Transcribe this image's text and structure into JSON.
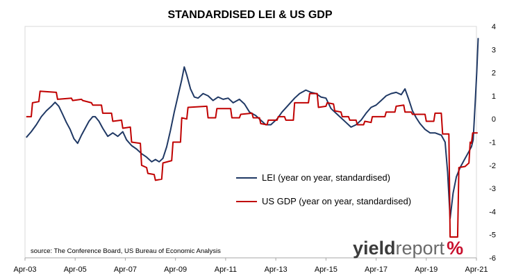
{
  "chart_data": {
    "type": "line",
    "title": "STANDARDISED LEI & US GDP",
    "source": "source: The Conference Board, US Bureau of Economic Analysis",
    "x_tick_labels": [
      "Apr-03",
      "Apr-05",
      "Apr-07",
      "Apr-09",
      "Apr-11",
      "Apr-13",
      "Apr-15",
      "Apr-17",
      "Apr-19",
      "Apr-21"
    ],
    "y_tick_labels": [
      "-6",
      "-5",
      "-4",
      "-3",
      "-2",
      "-1",
      "0",
      "1",
      "2",
      "3",
      "4"
    ],
    "xlim": [
      "Apr-03",
      "Apr-21"
    ],
    "ylim": [
      -6,
      4
    ],
    "grid": false,
    "legend_position": "center-right",
    "logo": {
      "part1": "yield",
      "part2": "report",
      "part3": "%"
    },
    "series": [
      {
        "name": "LEI (year on year, standardised)",
        "color": "#1f3864",
        "points": [
          [
            2003.3,
            -0.8
          ],
          [
            2003.5,
            -0.55
          ],
          [
            2003.7,
            -0.25
          ],
          [
            2003.9,
            0.1
          ],
          [
            2004.1,
            0.35
          ],
          [
            2004.3,
            0.55
          ],
          [
            2004.45,
            0.72
          ],
          [
            2004.6,
            0.55
          ],
          [
            2004.75,
            0.2
          ],
          [
            2004.9,
            -0.15
          ],
          [
            2005.05,
            -0.45
          ],
          [
            2005.2,
            -0.85
          ],
          [
            2005.35,
            -1.05
          ],
          [
            2005.5,
            -0.7
          ],
          [
            2005.65,
            -0.4
          ],
          [
            2005.8,
            -0.1
          ],
          [
            2005.95,
            0.1
          ],
          [
            2006.05,
            0.1
          ],
          [
            2006.2,
            -0.1
          ],
          [
            2006.35,
            -0.4
          ],
          [
            2006.55,
            -0.75
          ],
          [
            2006.75,
            -0.6
          ],
          [
            2006.95,
            -0.75
          ],
          [
            2007.15,
            -0.55
          ],
          [
            2007.3,
            -0.9
          ],
          [
            2007.5,
            -1.15
          ],
          [
            2007.7,
            -1.3
          ],
          [
            2007.9,
            -1.5
          ],
          [
            2008.1,
            -1.65
          ],
          [
            2008.3,
            -1.85
          ],
          [
            2008.45,
            -1.75
          ],
          [
            2008.6,
            -1.85
          ],
          [
            2008.75,
            -1.7
          ],
          [
            2008.9,
            -1.2
          ],
          [
            2009.05,
            -0.5
          ],
          [
            2009.2,
            0.3
          ],
          [
            2009.35,
            1.0
          ],
          [
            2009.5,
            1.7
          ],
          [
            2009.6,
            2.25
          ],
          [
            2009.7,
            1.9
          ],
          [
            2009.85,
            1.3
          ],
          [
            2010.0,
            0.95
          ],
          [
            2010.15,
            0.9
          ],
          [
            2010.35,
            1.1
          ],
          [
            2010.55,
            1.0
          ],
          [
            2010.75,
            0.8
          ],
          [
            2010.95,
            0.95
          ],
          [
            2011.15,
            0.85
          ],
          [
            2011.35,
            0.9
          ],
          [
            2011.55,
            0.7
          ],
          [
            2011.8,
            0.85
          ],
          [
            2012.0,
            0.65
          ],
          [
            2012.2,
            0.3
          ],
          [
            2012.45,
            0.15
          ],
          [
            2012.65,
            -0.05
          ],
          [
            2012.85,
            -0.25
          ],
          [
            2013.05,
            -0.25
          ],
          [
            2013.3,
            0.0
          ],
          [
            2013.5,
            0.3
          ],
          [
            2013.75,
            0.6
          ],
          [
            2014.0,
            0.9
          ],
          [
            2014.2,
            1.1
          ],
          [
            2014.45,
            1.25
          ],
          [
            2014.65,
            1.15
          ],
          [
            2014.85,
            1.1
          ],
          [
            2015.05,
            0.95
          ],
          [
            2015.25,
            0.9
          ],
          [
            2015.45,
            0.45
          ],
          [
            2015.65,
            0.25
          ],
          [
            2015.85,
            0.05
          ],
          [
            2016.05,
            -0.15
          ],
          [
            2016.25,
            -0.35
          ],
          [
            2016.45,
            -0.25
          ],
          [
            2016.65,
            -0.05
          ],
          [
            2016.85,
            0.25
          ],
          [
            2017.05,
            0.5
          ],
          [
            2017.25,
            0.6
          ],
          [
            2017.45,
            0.8
          ],
          [
            2017.65,
            1.0
          ],
          [
            2017.85,
            1.1
          ],
          [
            2018.05,
            1.15
          ],
          [
            2018.25,
            1.05
          ],
          [
            2018.4,
            1.3
          ],
          [
            2018.55,
            0.85
          ],
          [
            2018.7,
            0.35
          ],
          [
            2018.85,
            0.05
          ],
          [
            2019.0,
            -0.2
          ],
          [
            2019.2,
            -0.45
          ],
          [
            2019.4,
            -0.6
          ],
          [
            2019.6,
            -0.6
          ],
          [
            2019.85,
            -0.7
          ],
          [
            2020.0,
            -1.0
          ],
          [
            2020.1,
            -2.3
          ],
          [
            2020.2,
            -4.3
          ],
          [
            2020.32,
            -3.2
          ],
          [
            2020.45,
            -2.5
          ],
          [
            2020.6,
            -2.1
          ],
          [
            2020.75,
            -1.8
          ],
          [
            2020.9,
            -1.5
          ],
          [
            2021.05,
            -1.2
          ],
          [
            2021.12,
            -0.9
          ],
          [
            2021.2,
            0.7
          ],
          [
            2021.26,
            2.0
          ],
          [
            2021.32,
            3.5
          ]
        ]
      },
      {
        "name": "US GDP (year on year, standardised)",
        "color": "#c00000",
        "points": [
          [
            2003.3,
            0.1
          ],
          [
            2003.5,
            0.1
          ],
          [
            2003.55,
            0.7
          ],
          [
            2003.8,
            0.75
          ],
          [
            2003.85,
            1.2
          ],
          [
            2004.5,
            1.15
          ],
          [
            2004.55,
            0.85
          ],
          [
            2005.1,
            0.9
          ],
          [
            2005.15,
            0.8
          ],
          [
            2005.5,
            0.85
          ],
          [
            2005.55,
            0.8
          ],
          [
            2005.9,
            0.7
          ],
          [
            2005.95,
            0.6
          ],
          [
            2006.3,
            0.6
          ],
          [
            2006.35,
            0.25
          ],
          [
            2006.7,
            0.25
          ],
          [
            2006.75,
            -0.1
          ],
          [
            2007.1,
            -0.05
          ],
          [
            2007.15,
            -0.4
          ],
          [
            2007.45,
            -0.35
          ],
          [
            2007.5,
            -1.0
          ],
          [
            2007.85,
            -1.05
          ],
          [
            2007.9,
            -2.0
          ],
          [
            2008.1,
            -2.1
          ],
          [
            2008.15,
            -2.35
          ],
          [
            2008.4,
            -2.4
          ],
          [
            2008.45,
            -2.65
          ],
          [
            2008.7,
            -2.6
          ],
          [
            2008.75,
            -1.9
          ],
          [
            2009.1,
            -1.8
          ],
          [
            2009.15,
            -1.0
          ],
          [
            2009.45,
            -1.0
          ],
          [
            2009.5,
            0.05
          ],
          [
            2009.7,
            0.0
          ],
          [
            2009.75,
            0.5
          ],
          [
            2010.5,
            0.55
          ],
          [
            2010.55,
            0.05
          ],
          [
            2010.85,
            0.05
          ],
          [
            2010.9,
            0.45
          ],
          [
            2011.45,
            0.45
          ],
          [
            2011.5,
            0.05
          ],
          [
            2011.8,
            0.05
          ],
          [
            2011.85,
            0.2
          ],
          [
            2012.3,
            0.25
          ],
          [
            2012.35,
            0.05
          ],
          [
            2012.6,
            0.05
          ],
          [
            2012.65,
            -0.2
          ],
          [
            2012.9,
            -0.25
          ],
          [
            2012.95,
            -0.05
          ],
          [
            2013.3,
            -0.05
          ],
          [
            2013.35,
            0.1
          ],
          [
            2013.6,
            0.1
          ],
          [
            2013.65,
            -0.05
          ],
          [
            2013.95,
            -0.05
          ],
          [
            2014.0,
            0.7
          ],
          [
            2014.55,
            0.7
          ],
          [
            2014.6,
            1.1
          ],
          [
            2014.9,
            1.1
          ],
          [
            2014.95,
            0.5
          ],
          [
            2015.25,
            0.55
          ],
          [
            2015.3,
            0.7
          ],
          [
            2015.55,
            0.65
          ],
          [
            2015.6,
            0.35
          ],
          [
            2015.85,
            0.3
          ],
          [
            2015.9,
            0.1
          ],
          [
            2016.15,
            0.1
          ],
          [
            2016.2,
            -0.05
          ],
          [
            2016.45,
            -0.05
          ],
          [
            2016.5,
            -0.25
          ],
          [
            2016.75,
            -0.25
          ],
          [
            2016.8,
            -0.1
          ],
          [
            2017.05,
            -0.15
          ],
          [
            2017.1,
            0.1
          ],
          [
            2017.6,
            0.1
          ],
          [
            2017.65,
            0.3
          ],
          [
            2018.0,
            0.3
          ],
          [
            2018.05,
            0.55
          ],
          [
            2018.35,
            0.6
          ],
          [
            2018.4,
            0.3
          ],
          [
            2018.65,
            0.3
          ],
          [
            2018.7,
            0.2
          ],
          [
            2019.2,
            0.2
          ],
          [
            2019.25,
            -0.1
          ],
          [
            2019.55,
            -0.1
          ],
          [
            2019.6,
            0.25
          ],
          [
            2019.85,
            0.25
          ],
          [
            2019.9,
            -0.65
          ],
          [
            2020.15,
            -0.65
          ],
          [
            2020.2,
            -5.1
          ],
          [
            2020.5,
            -5.1
          ],
          [
            2020.55,
            -2.1
          ],
          [
            2020.8,
            -2.05
          ],
          [
            2020.85,
            -2.0
          ],
          [
            2020.95,
            -1.9
          ],
          [
            2021.0,
            -1.0
          ],
          [
            2021.05,
            -1.05
          ],
          [
            2021.1,
            -0.6
          ],
          [
            2021.3,
            -0.6
          ]
        ]
      }
    ]
  }
}
